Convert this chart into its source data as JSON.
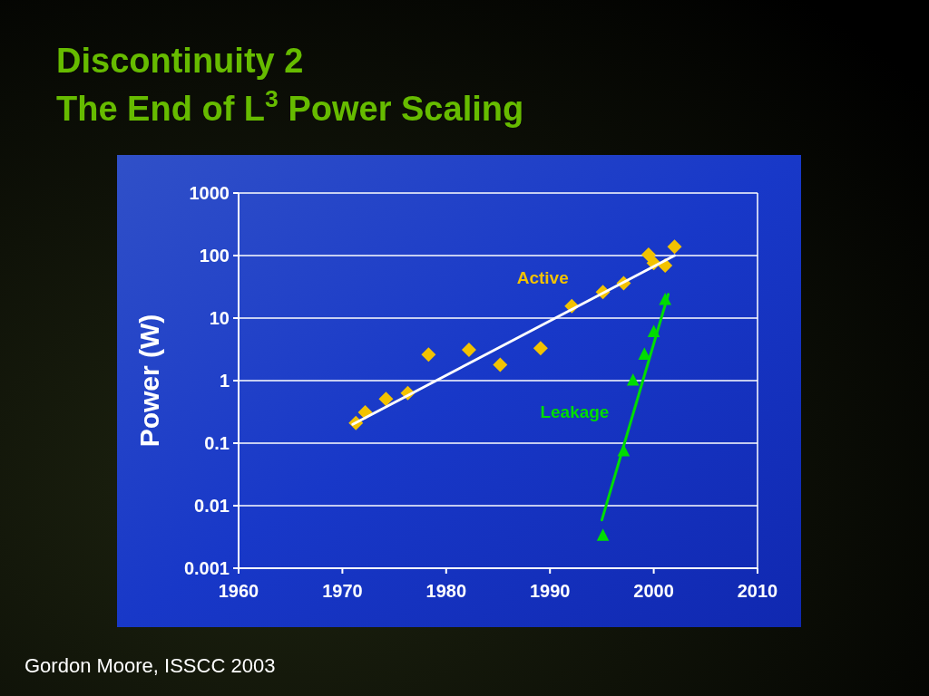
{
  "chart_data": {
    "type": "scatter",
    "title": "Discontinuity 2",
    "subtitle": "The End of L$^{3}$ Power Scaling",
    "ylabel": "Power (W)",
    "annotations": [
      "Gordon Moore, ISSCC 2003"
    ],
    "log": "y",
    "grid": "y",
    "xlim": [
      1960,
      2010
    ],
    "xticks": [
      1960,
      1970,
      1980,
      1990,
      2000,
      2010
    ],
    "ylim": [
      0.001,
      1000
    ],
    "yticks": [
      0.001,
      0.01,
      0.1,
      1,
      10,
      100,
      1000
    ],
    "series": [
      {
        "name": "Active",
        "marker": "diamond",
        "color": "#f2c200",
        "x": [
          1971.3,
          1972.2,
          1974.2,
          1976.3,
          1978.3,
          1982.2,
          1985.2,
          1989.1,
          1992.1,
          1995.1,
          1997.1,
          1999.5,
          2000,
          2001.1,
          2002
        ],
        "values": [
          0.21,
          0.31,
          0.51,
          0.63,
          2.6,
          3.1,
          1.8,
          3.3,
          15.5,
          26,
          36,
          103,
          76,
          69,
          138
        ]
      },
      {
        "type": "line",
        "marker": "none",
        "color": "#ffffff",
        "x": [
          1971,
          2002
        ],
        "values": [
          0.2,
          100
        ]
      },
      {
        "name": "Leakage",
        "marker": "triangle",
        "color": "#00dd00",
        "x": [
          1995.1,
          1997.1,
          1998,
          1999.1,
          2000,
          2001.1
        ],
        "values": [
          0.0033,
          0.074,
          1.0,
          2.6,
          6.0,
          19.5
        ]
      },
      {
        "type": "line",
        "marker": "none",
        "color": "#00dd00",
        "x": [
          1995,
          2001.4
        ],
        "values": [
          0.0059,
          24
        ]
      }
    ]
  }
}
